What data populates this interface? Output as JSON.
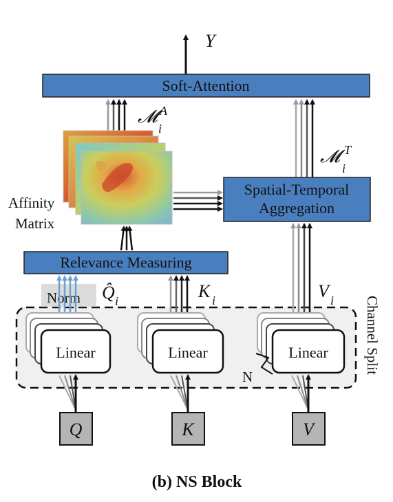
{
  "blocks": {
    "soft_attention": "Soft-Attention",
    "spatial_temporal_line1": "Spatial-Temporal",
    "spatial_temporal_line2": "Aggregation",
    "relevance_measuring": "Relevance Measuring"
  },
  "labels": {
    "output": "Y",
    "m_a_base": "𝓜",
    "m_a_sub": "i",
    "m_a_sup": "A",
    "m_t_base": "𝓜",
    "m_t_sub": "i",
    "m_t_sup": "T",
    "affinity_line1": "Affinity",
    "affinity_line2": "Matrix",
    "norm": "Norm",
    "q_hat": "Q̂",
    "q_sub": "i",
    "k_base": "K",
    "k_sub": "i",
    "v_base": "V",
    "v_sub": "i",
    "channel_split": "Channel Split",
    "n_label": "N"
  },
  "linear": {
    "q": "Linear",
    "k": "Linear",
    "v": "Linear"
  },
  "inputs": {
    "q": "Q",
    "k": "K",
    "v": "V"
  },
  "caption": "(b) NS Block",
  "colors": {
    "block_blue": "#4a7fbf",
    "block_border": "#222222",
    "input_gray": "#b5b5b5",
    "norm_bg": "#dcdcdc",
    "channel_bg": "#f0f0f0"
  }
}
